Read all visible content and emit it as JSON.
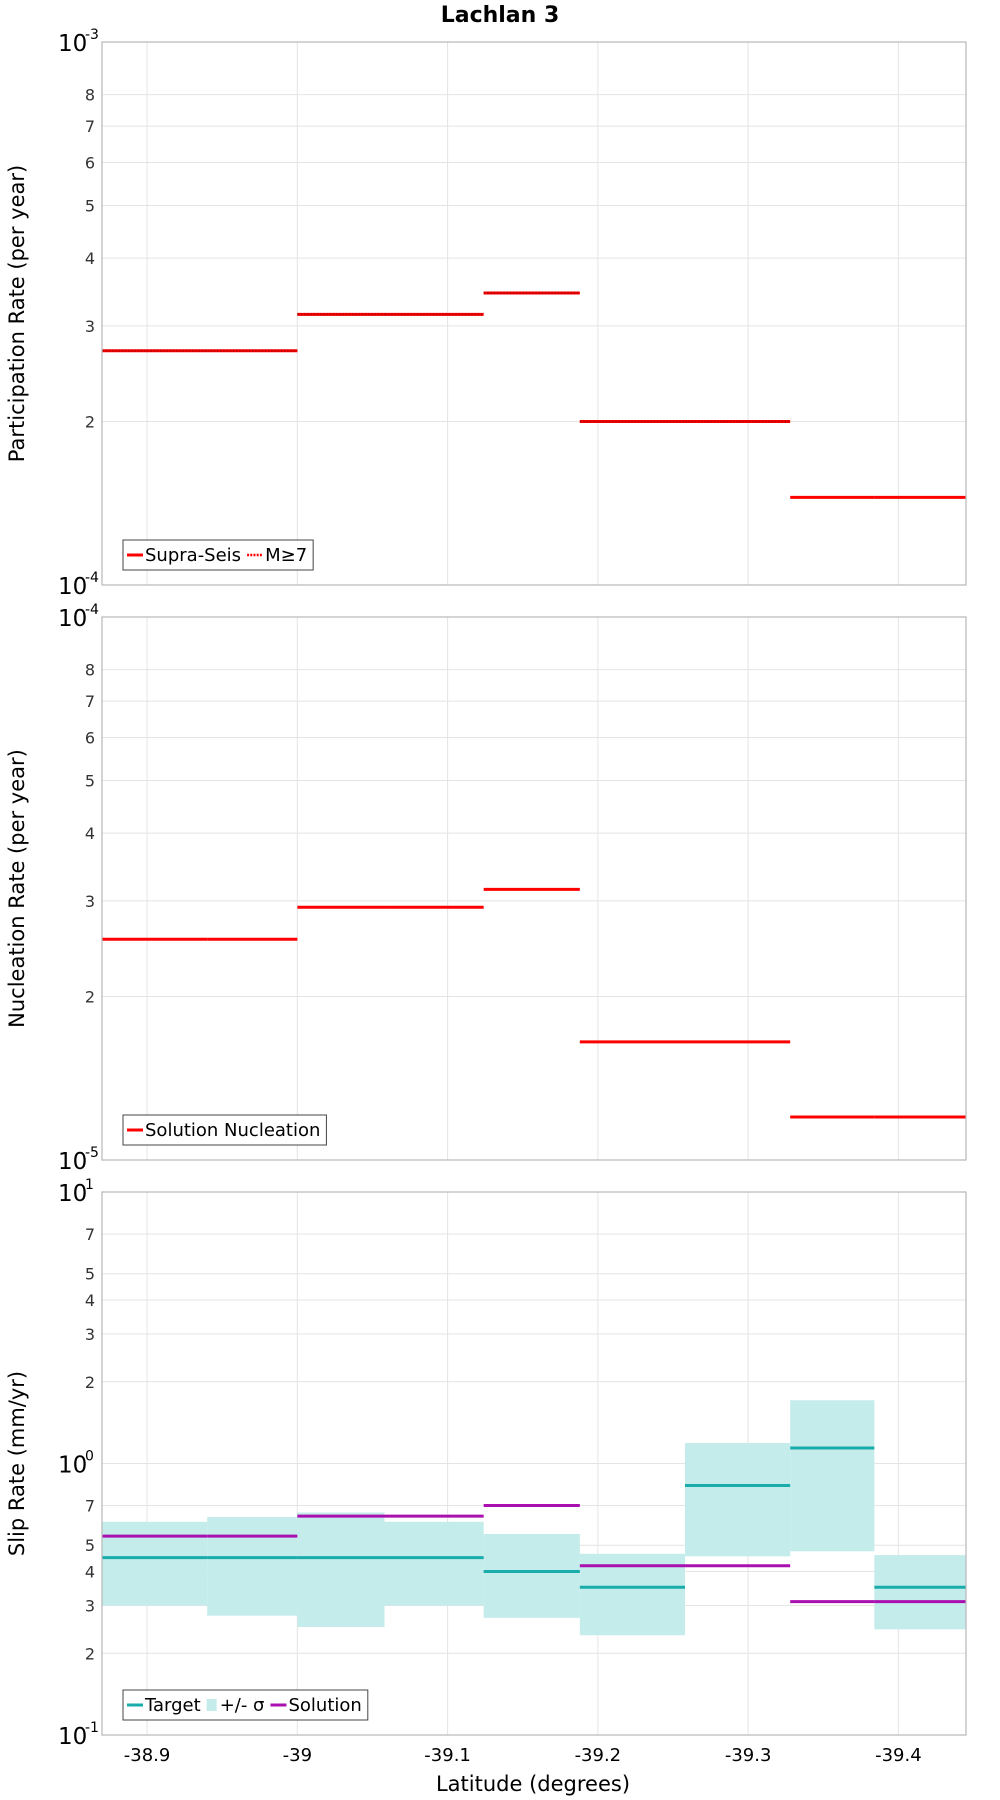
{
  "title": "Lachlan 3",
  "x_axis": {
    "label": "Latitude (degrees)",
    "range": [
      -38.87,
      -39.445
    ],
    "ticks": [
      -38.9,
      -39.0,
      -39.1,
      -39.2,
      -39.3,
      -39.4
    ],
    "tick_labels": [
      "-38.9",
      "-39",
      "-39.1",
      "-39.2",
      "-39.3",
      "-39.4"
    ]
  },
  "colors": {
    "red": "#ff0000",
    "target": "#1aabab",
    "band": "#c4eceb",
    "solution": "#aa10b0",
    "grid": "#e4e4e4",
    "frame": "#b8b8b8"
  },
  "chart_data": [
    {
      "type": "line",
      "subtype": "step",
      "ylabel": "Participation Rate (per year)",
      "yscale": "log",
      "ylim": [
        0.0001,
        0.001
      ],
      "decade_labels": [
        {
          "base": "10",
          "exp": "-3",
          "value": 0.001
        },
        {
          "base": "10",
          "exp": "-4",
          "value": 0.0001
        }
      ],
      "minor_ticks": [
        {
          "label": "8",
          "value": 0.0008
        },
        {
          "label": "7",
          "value": 0.0007
        },
        {
          "label": "6",
          "value": 0.0006
        },
        {
          "label": "5",
          "value": 0.0005
        },
        {
          "label": "4",
          "value": 0.0004
        },
        {
          "label": "3",
          "value": 0.0003
        },
        {
          "label": "2",
          "value": 0.0002
        }
      ],
      "legend": {
        "position": "bottom-left",
        "entries": [
          {
            "label": "Supra-Seis",
            "style": "solid",
            "color": "#ff0000"
          },
          {
            "label": "M≥7",
            "style": "dotted",
            "color": "#ff0000"
          }
        ]
      },
      "series": [
        {
          "name": "Supra-Seis",
          "color": "#ff0000",
          "style": "solid",
          "segments": [
            {
              "x0": -38.87,
              "x1": -38.94,
              "y": 0.00027
            },
            {
              "x0": -38.94,
              "x1": -39.0,
              "y": 0.00027
            },
            {
              "x0": -39.0,
              "x1": -39.058,
              "y": 0.000315
            },
            {
              "x0": -39.058,
              "x1": -39.124,
              "y": 0.000315
            },
            {
              "x0": -39.124,
              "x1": -39.188,
              "y": 0.000345
            },
            {
              "x0": -39.188,
              "x1": -39.258,
              "y": 0.0002
            },
            {
              "x0": -39.258,
              "x1": -39.328,
              "y": 0.0002
            },
            {
              "x0": -39.328,
              "x1": -39.384,
              "y": 0.000145
            },
            {
              "x0": -39.384,
              "x1": -39.445,
              "y": 0.000145
            }
          ]
        },
        {
          "name": "M≥7",
          "color": "#ff0000",
          "style": "dotted",
          "segments": [
            {
              "x0": -38.87,
              "x1": -38.94,
              "y": 0.00027
            },
            {
              "x0": -38.94,
              "x1": -39.0,
              "y": 0.00027
            },
            {
              "x0": -39.0,
              "x1": -39.058,
              "y": 0.000315
            },
            {
              "x0": -39.058,
              "x1": -39.124,
              "y": 0.000315
            },
            {
              "x0": -39.124,
              "x1": -39.188,
              "y": 0.000345
            },
            {
              "x0": -39.188,
              "x1": -39.258,
              "y": 0.0002
            },
            {
              "x0": -39.258,
              "x1": -39.328,
              "y": 0.0002
            }
          ]
        }
      ]
    },
    {
      "type": "line",
      "subtype": "step",
      "ylabel": "Nucleation Rate (per year)",
      "yscale": "log",
      "ylim": [
        1e-05,
        0.0001
      ],
      "decade_labels": [
        {
          "base": "10",
          "exp": "-4",
          "value": 0.0001
        },
        {
          "base": "10",
          "exp": "-5",
          "value": 1e-05
        }
      ],
      "minor_ticks": [
        {
          "label": "8",
          "value": 8e-05
        },
        {
          "label": "7",
          "value": 7e-05
        },
        {
          "label": "6",
          "value": 6e-05
        },
        {
          "label": "5",
          "value": 5e-05
        },
        {
          "label": "4",
          "value": 4e-05
        },
        {
          "label": "3",
          "value": 3e-05
        },
        {
          "label": "2",
          "value": 2e-05
        }
      ],
      "legend": {
        "position": "bottom-left",
        "entries": [
          {
            "label": "Solution Nucleation",
            "style": "solid",
            "color": "#ff0000"
          }
        ]
      },
      "series": [
        {
          "name": "Solution Nucleation",
          "color": "#ff0000",
          "style": "solid",
          "segments": [
            {
              "x0": -38.87,
              "x1": -38.94,
              "y": 2.55e-05
            },
            {
              "x0": -38.94,
              "x1": -39.0,
              "y": 2.55e-05
            },
            {
              "x0": -39.0,
              "x1": -39.058,
              "y": 2.92e-05
            },
            {
              "x0": -39.058,
              "x1": -39.124,
              "y": 2.92e-05
            },
            {
              "x0": -39.124,
              "x1": -39.188,
              "y": 3.15e-05
            },
            {
              "x0": -39.188,
              "x1": -39.258,
              "y": 1.65e-05
            },
            {
              "x0": -39.258,
              "x1": -39.328,
              "y": 1.65e-05
            },
            {
              "x0": -39.328,
              "x1": -39.384,
              "y": 1.2e-05
            },
            {
              "x0": -39.384,
              "x1": -39.445,
              "y": 1.2e-05
            }
          ]
        }
      ]
    },
    {
      "type": "line",
      "subtype": "step-with-band",
      "ylabel": "Slip Rate (mm/yr)",
      "yscale": "log",
      "ylim": [
        0.1,
        10
      ],
      "decade_labels": [
        {
          "base": "10",
          "exp": "1",
          "value": 10
        },
        {
          "base": "10",
          "exp": "0",
          "value": 1
        },
        {
          "base": "10",
          "exp": "-1",
          "value": 0.1
        }
      ],
      "minor_ticks": [
        {
          "label": "7",
          "value": 7
        },
        {
          "label": "5",
          "value": 5
        },
        {
          "label": "4",
          "value": 4
        },
        {
          "label": "3",
          "value": 3
        },
        {
          "label": "2",
          "value": 2
        },
        {
          "label": "7",
          "value": 0.7
        },
        {
          "label": "5",
          "value": 0.5
        },
        {
          "label": "4",
          "value": 0.4
        },
        {
          "label": "3",
          "value": 0.3
        },
        {
          "label": "2",
          "value": 0.2
        }
      ],
      "legend": {
        "position": "bottom-left",
        "entries": [
          {
            "label": "Target",
            "style": "solid",
            "color": "#1aabab"
          },
          {
            "label": "+/- σ",
            "style": "band",
            "color": "#c4eceb"
          },
          {
            "label": "Solution",
            "style": "solid",
            "color": "#aa10b0"
          }
        ]
      },
      "bands": [
        {
          "x0": -38.87,
          "x1": -38.94,
          "lo": 0.3,
          "hi": 0.61
        },
        {
          "x0": -38.94,
          "x1": -39.0,
          "lo": 0.275,
          "hi": 0.635
        },
        {
          "x0": -39.0,
          "x1": -39.058,
          "lo": 0.25,
          "hi": 0.66
        },
        {
          "x0": -39.058,
          "x1": -39.124,
          "lo": 0.3,
          "hi": 0.61
        },
        {
          "x0": -39.124,
          "x1": -39.188,
          "lo": 0.27,
          "hi": 0.55
        },
        {
          "x0": -39.188,
          "x1": -39.258,
          "lo": 0.233,
          "hi": 0.465
        },
        {
          "x0": -39.258,
          "x1": -39.328,
          "lo": 0.455,
          "hi": 1.19
        },
        {
          "x0": -39.328,
          "x1": -39.384,
          "lo": 0.475,
          "hi": 1.71
        },
        {
          "x0": -39.384,
          "x1": -39.445,
          "lo": 0.245,
          "hi": 0.46
        }
      ],
      "series": [
        {
          "name": "Target",
          "color": "#1aabab",
          "style": "solid",
          "segments": [
            {
              "x0": -38.87,
              "x1": -38.94,
              "y": 0.45
            },
            {
              "x0": -38.94,
              "x1": -39.0,
              "y": 0.45
            },
            {
              "x0": -39.0,
              "x1": -39.058,
              "y": 0.45
            },
            {
              "x0": -39.058,
              "x1": -39.124,
              "y": 0.45
            },
            {
              "x0": -39.124,
              "x1": -39.188,
              "y": 0.4
            },
            {
              "x0": -39.188,
              "x1": -39.258,
              "y": 0.35
            },
            {
              "x0": -39.258,
              "x1": -39.328,
              "y": 0.83
            },
            {
              "x0": -39.328,
              "x1": -39.384,
              "y": 1.14
            },
            {
              "x0": -39.384,
              "x1": -39.445,
              "y": 0.35
            }
          ]
        },
        {
          "name": "Solution",
          "color": "#aa10b0",
          "style": "solid",
          "segments": [
            {
              "x0": -38.87,
              "x1": -38.94,
              "y": 0.54
            },
            {
              "x0": -38.94,
              "x1": -39.0,
              "y": 0.54
            },
            {
              "x0": -39.0,
              "x1": -39.058,
              "y": 0.64
            },
            {
              "x0": -39.058,
              "x1": -39.124,
              "y": 0.64
            },
            {
              "x0": -39.124,
              "x1": -39.188,
              "y": 0.7
            },
            {
              "x0": -39.188,
              "x1": -39.258,
              "y": 0.42
            },
            {
              "x0": -39.258,
              "x1": -39.328,
              "y": 0.42
            },
            {
              "x0": -39.328,
              "x1": -39.384,
              "y": 0.31
            },
            {
              "x0": -39.384,
              "x1": -39.445,
              "y": 0.31
            }
          ]
        }
      ]
    }
  ]
}
